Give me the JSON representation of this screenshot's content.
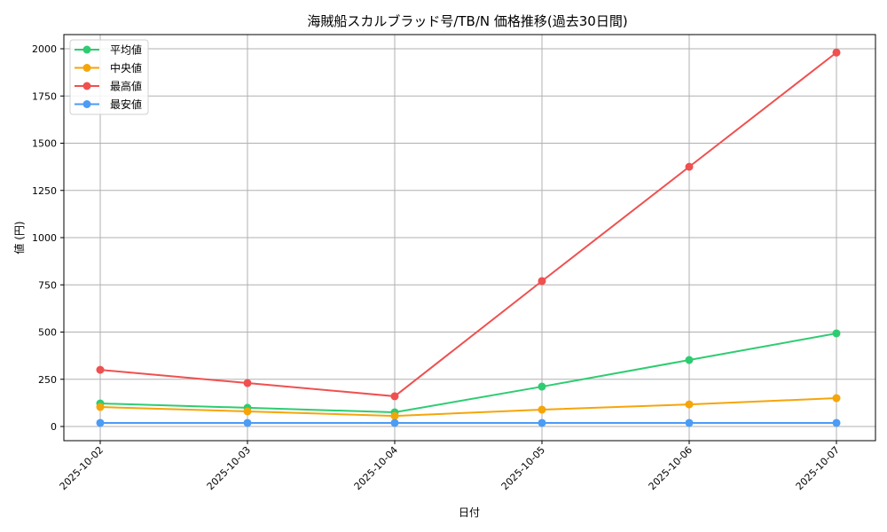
{
  "chart_data": {
    "type": "line",
    "title": "海賊船スカルブラッド号/TB/N 価格推移(過去30日間)",
    "xlabel": "日付",
    "ylabel": "値 (円)",
    "categories": [
      "2025-10-02",
      "2025-10-03",
      "2025-10-04",
      "2025-10-05",
      "2025-10-06",
      "2025-10-07"
    ],
    "series": [
      {
        "name": "平均値",
        "color": "#2ecc71",
        "values": [
          122,
          99,
          75,
          211,
          352,
          493
        ]
      },
      {
        "name": "中央値",
        "color": "#f5a50a",
        "values": [
          103,
          80,
          56,
          89,
          117,
          150
        ]
      },
      {
        "name": "最高値",
        "color": "#f05050",
        "values": [
          300,
          230,
          160,
          770,
          1375,
          1980
        ]
      },
      {
        "name": "最安値",
        "color": "#4b9cf5",
        "values": [
          19,
          19,
          19,
          19,
          19,
          19
        ]
      }
    ],
    "yticks": [
      0,
      250,
      500,
      750,
      1000,
      1250,
      1500,
      1750,
      2000
    ],
    "ylim": [
      -75,
      2070
    ],
    "grid": true,
    "legend_position": "upper left"
  }
}
